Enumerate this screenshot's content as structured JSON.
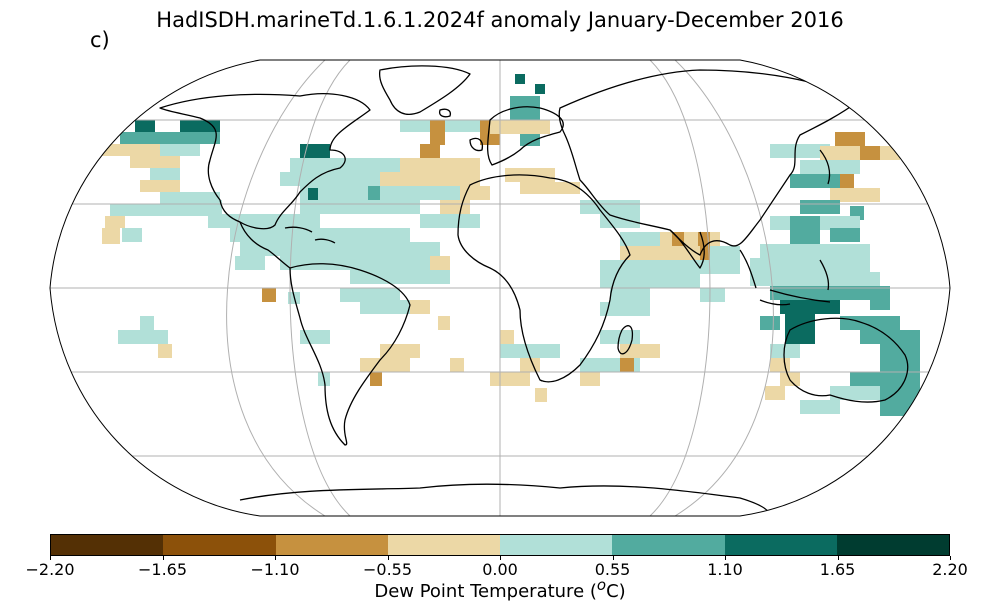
{
  "title": "HadISDH.marineTd.1.6.1.2024f anomaly January-December 2016",
  "panel_label": "c)",
  "colorbar": {
    "label": "Dew Point Temperature (ᵒC)",
    "label_prefix": "Dew Point Temperature (",
    "label_sup": "o",
    "label_suffix": "C)",
    "ticks": [
      "−2.20",
      "−1.65",
      "−1.10",
      "−0.55",
      "0.00",
      "0.55",
      "1.10",
      "1.65",
      "2.20"
    ],
    "colors": [
      "#543005",
      "#8c510a",
      "#c6913f",
      "#ecd8a6",
      "#b1e0d8",
      "#52ab9f",
      "#0b6b60",
      "#003c30"
    ]
  },
  "map": {
    "projection": "Robinson",
    "ocean": "#ffffff",
    "coast": "#000000",
    "gridlines": "#b0b0b0"
  }
}
